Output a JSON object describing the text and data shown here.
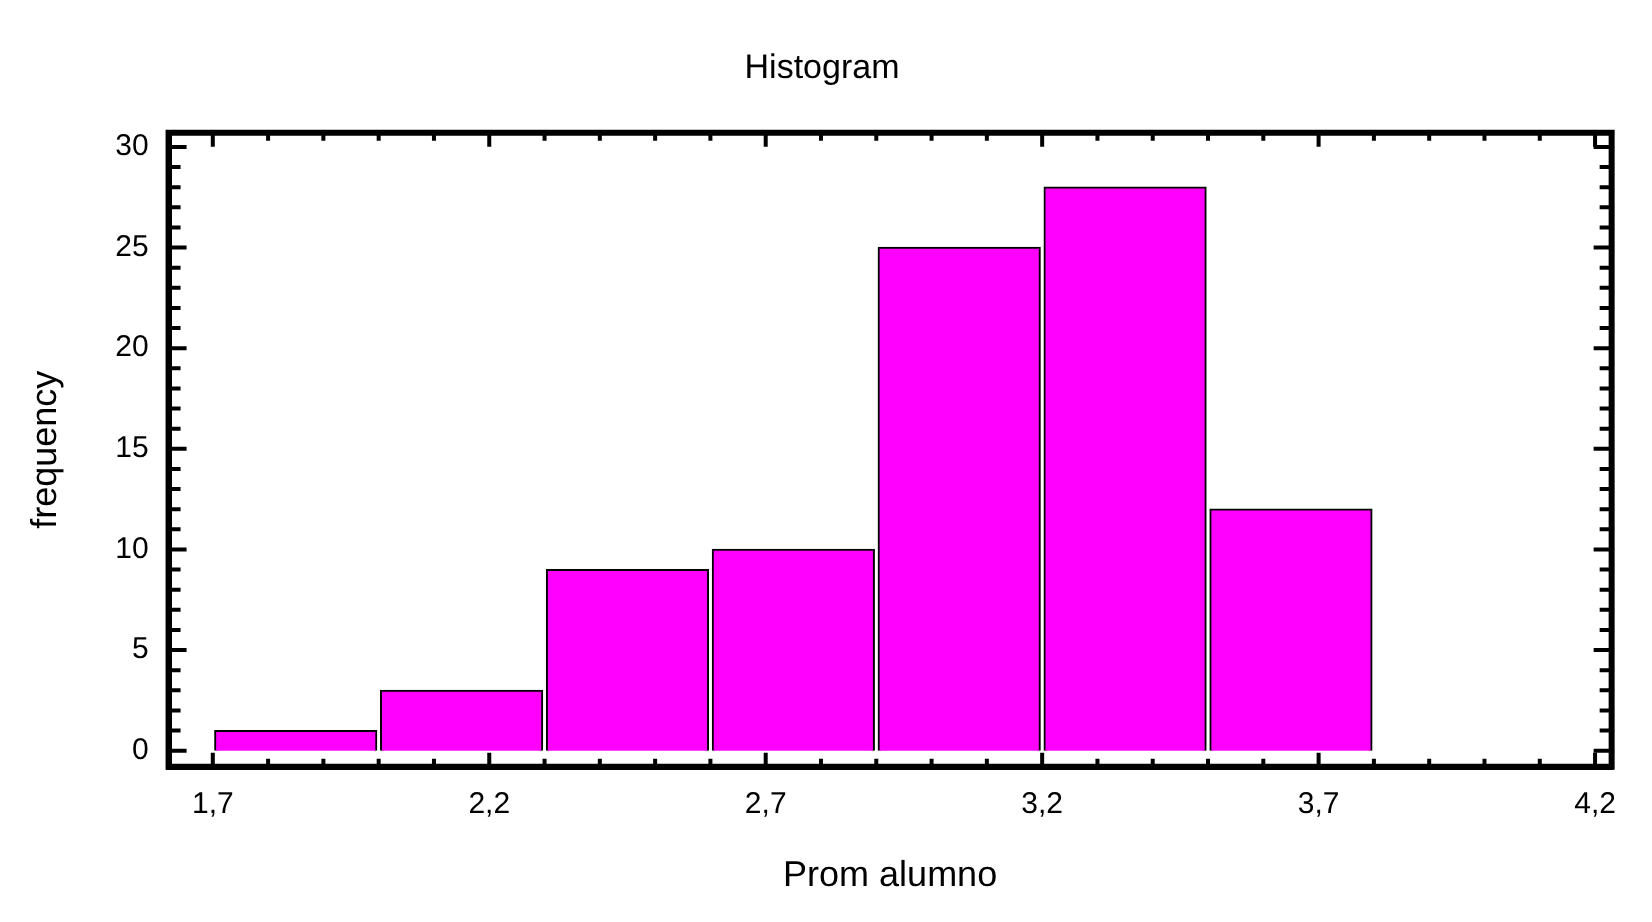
{
  "chart_data": {
    "type": "histogram",
    "title": "Histogram",
    "xlabel": "Prom alumno",
    "ylabel": "frequency",
    "bins": [
      1.7,
      2.0,
      2.3,
      2.6,
      2.9,
      3.2,
      3.5,
      3.8,
      4.1
    ],
    "values": [
      1,
      3,
      9,
      10,
      25,
      28,
      12,
      0
    ],
    "color": "#ff00ff",
    "xlim": [
      1.62,
      4.23
    ],
    "xticks": [
      {
        "value": 1.7,
        "label": "1,7"
      },
      {
        "value": 1.8,
        "label": null
      },
      {
        "value": 1.9,
        "label": null
      },
      {
        "value": 2.0,
        "label": null
      },
      {
        "value": 2.1,
        "label": null
      },
      {
        "value": 2.2,
        "label": "2,2"
      },
      {
        "value": 2.3,
        "label": null
      },
      {
        "value": 2.4,
        "label": null
      },
      {
        "value": 2.5,
        "label": null
      },
      {
        "value": 2.6,
        "label": null
      },
      {
        "value": 2.7,
        "label": "2,7"
      },
      {
        "value": 2.8,
        "label": null
      },
      {
        "value": 2.9,
        "label": null
      },
      {
        "value": 3.0,
        "label": null
      },
      {
        "value": 3.1,
        "label": null
      },
      {
        "value": 3.2,
        "label": "3,2"
      },
      {
        "value": 3.3,
        "label": null
      },
      {
        "value": 3.4,
        "label": null
      },
      {
        "value": 3.5,
        "label": null
      },
      {
        "value": 3.6,
        "label": null
      },
      {
        "value": 3.7,
        "label": "3,7"
      },
      {
        "value": 3.8,
        "label": null
      },
      {
        "value": 3.9,
        "label": null
      },
      {
        "value": 4.0,
        "label": null
      },
      {
        "value": 4.1,
        "label": null
      },
      {
        "value": 4.2,
        "label": "4,2"
      }
    ],
    "ylim": [
      -0.8,
      30.7
    ],
    "yticks": [
      0,
      {
        "value": 1,
        "label": null
      },
      {
        "value": 2,
        "label": null
      },
      {
        "value": 3,
        "label": null
      },
      {
        "value": 4,
        "label": null
      },
      5,
      {
        "value": 6,
        "label": null
      },
      {
        "value": 7,
        "label": null
      },
      {
        "value": 8,
        "label": null
      },
      {
        "value": 9,
        "label": null
      },
      10,
      {
        "value": 11,
        "label": null
      },
      {
        "value": 12,
        "label": null
      },
      {
        "value": 13,
        "label": null
      },
      {
        "value": 14,
        "label": null
      },
      15,
      {
        "value": 16,
        "label": null
      },
      {
        "value": 17,
        "label": null
      },
      {
        "value": 18,
        "label": null
      },
      {
        "value": 19,
        "label": null
      },
      20,
      {
        "value": 21,
        "label": null
      },
      {
        "value": 22,
        "label": null
      },
      {
        "value": 23,
        "label": null
      },
      {
        "value": 24,
        "label": null
      },
      25,
      {
        "value": 26,
        "label": null
      },
      {
        "value": 27,
        "label": null
      },
      {
        "value": 28,
        "label": null
      },
      {
        "value": 29,
        "label": null
      },
      30
    ],
    "grid": false,
    "legend": false
  }
}
